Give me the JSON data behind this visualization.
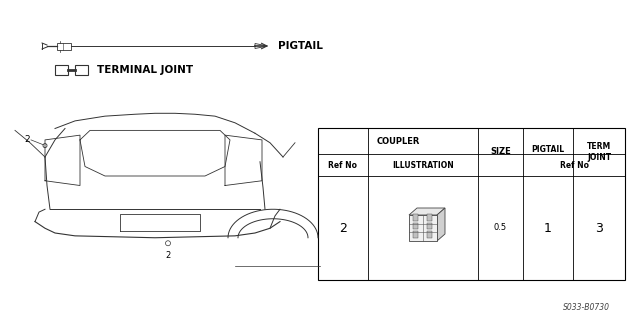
{
  "bg_color": "#ffffff",
  "border_color": "#333333",
  "text_color": "#000000",
  "pigtail_label": "PIGTAIL",
  "terminal_joint_label": "TERMINAL JOINT",
  "table_title_coupler": "COUPLER",
  "table_col_size": "SIZE",
  "table_col_pigtail": "PIGTAIL",
  "table_col_term_joint": "TERM\nJOINT",
  "table_sub_ref": "Ref No",
  "table_sub_illus": "ILLUSTRATION",
  "table_sub_ref_no": "Ref No",
  "table_row_ref": "2",
  "table_row_size": "0.5",
  "table_row_pigtail": "1",
  "table_row_term": "3",
  "footer_code": "S033-B0730",
  "diagram_label_2a": "2",
  "diagram_label_2b": "2"
}
